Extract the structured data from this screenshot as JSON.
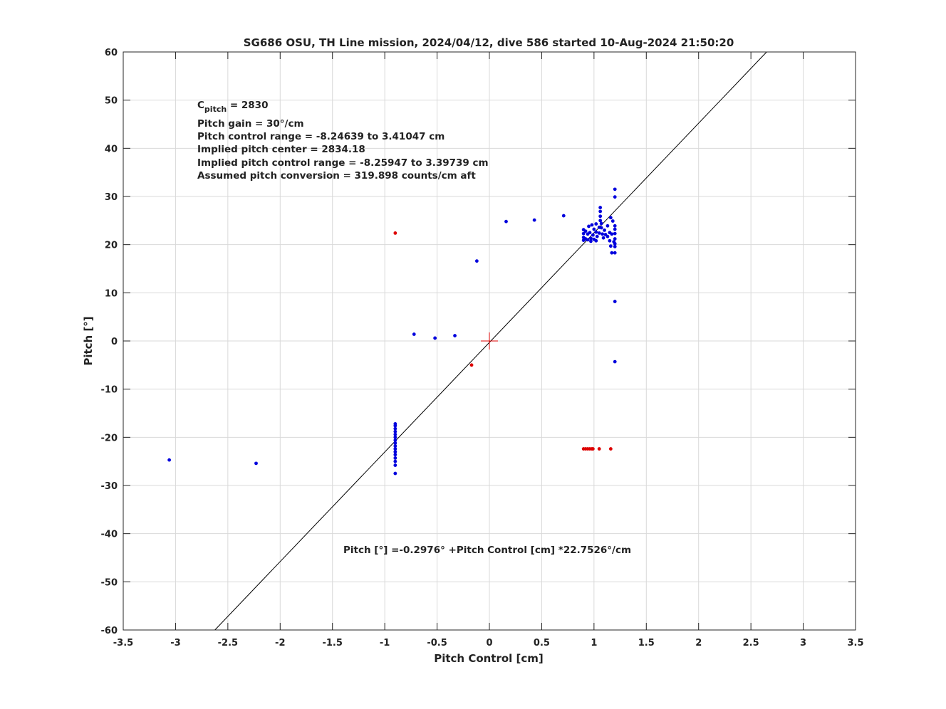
{
  "chart_data": {
    "type": "scatter",
    "title": "SG686 OSU, TH Line mission, 2024/04/12, dive 586 started 10-Aug-2024 21:50:20",
    "xlabel": "Pitch Control [cm]",
    "ylabel": "Pitch [°]",
    "xlim": [
      -3.5,
      3.5
    ],
    "ylim": [
      -60,
      60
    ],
    "x_ticks": [
      -3.5,
      -3,
      -2.5,
      -2,
      -1.5,
      -1,
      -0.5,
      0,
      0.5,
      1,
      1.5,
      2,
      2.5,
      3,
      3.5
    ],
    "x_tick_labels": [
      "-3.5",
      "-3",
      "-2.5",
      "-2",
      "-1.5",
      "-1",
      "-0.5",
      "0",
      "0.5",
      "1",
      "1.5",
      "2",
      "2.5",
      "3",
      "3.5"
    ],
    "y_ticks": [
      -60,
      -50,
      -40,
      -30,
      -20,
      -10,
      0,
      10,
      20,
      30,
      40,
      50,
      60
    ],
    "y_tick_labels": [
      "-60",
      "-50",
      "-40",
      "-30",
      "-20",
      "-10",
      "0",
      "10",
      "20",
      "30",
      "40",
      "50",
      "60"
    ],
    "grid": true,
    "colors": {
      "blue": "#0000dd",
      "red": "#dd0000",
      "fit": "#000000",
      "grid": "#d9d9d9"
    },
    "annotations": {
      "cpitch_symbol": "C",
      "cpitch_subscript": "pitch",
      "cpitch_value": " = 2830",
      "lines": [
        "Pitch gain = 30°/cm",
        "Pitch control range = -8.24639 to 3.41047 cm",
        "Implied pitch center = 2834.18",
        "Implied pitch control range = -8.25947 to 3.39739 cm",
        "Assumed pitch conversion = 319.898 counts/cm aft"
      ],
      "fit_equation": "Pitch [°] =-0.2976° +Pitch Control [cm] *22.7526°/cm"
    },
    "fit_line": {
      "intercept": -0.2976,
      "slope": 22.7526
    },
    "center_marker": {
      "x": 0,
      "y": 0
    },
    "series": [
      {
        "color": "blue",
        "points": [
          [
            -3.06,
            -24.7
          ],
          [
            -2.23,
            -25.4
          ],
          [
            -0.72,
            1.4
          ],
          [
            -0.52,
            0.6
          ],
          [
            -0.33,
            1.1
          ],
          [
            -0.12,
            16.6
          ],
          [
            0.16,
            24.8
          ],
          [
            0.43,
            25.1
          ],
          [
            0.71,
            26.0
          ],
          [
            -0.9,
            -27.5
          ],
          [
            -0.9,
            -25.8
          ],
          [
            -0.9,
            -25.0
          ],
          [
            -0.9,
            -24.3
          ],
          [
            -0.9,
            -23.6
          ],
          [
            -0.9,
            -23.0
          ],
          [
            -0.9,
            -22.4
          ],
          [
            -0.9,
            -21.8
          ],
          [
            -0.9,
            -21.2
          ],
          [
            -0.9,
            -20.6
          ],
          [
            -0.9,
            -20.0
          ],
          [
            -0.9,
            -19.4
          ],
          [
            -0.9,
            -18.8
          ],
          [
            -0.9,
            -18.2
          ],
          [
            -0.9,
            -17.6
          ],
          [
            -0.9,
            -17.2
          ],
          [
            0.9,
            23.1
          ],
          [
            0.9,
            22.3
          ],
          [
            0.9,
            21.5
          ],
          [
            0.9,
            20.9
          ],
          [
            0.92,
            22.8
          ],
          [
            0.92,
            21.2
          ],
          [
            0.94,
            22.2
          ],
          [
            0.94,
            21.0
          ],
          [
            0.95,
            23.8
          ],
          [
            0.96,
            22.5
          ],
          [
            0.97,
            21.3
          ],
          [
            0.97,
            20.7
          ],
          [
            0.98,
            24.1
          ],
          [
            0.99,
            22.0
          ],
          [
            1.0,
            23.2
          ],
          [
            1.0,
            21.1
          ],
          [
            1.02,
            24.3
          ],
          [
            1.02,
            22.6
          ],
          [
            1.02,
            20.8
          ],
          [
            1.03,
            21.7
          ],
          [
            1.05,
            23.6
          ],
          [
            1.05,
            22.4
          ],
          [
            1.06,
            27.7
          ],
          [
            1.06,
            26.9
          ],
          [
            1.06,
            25.9
          ],
          [
            1.06,
            25.0
          ],
          [
            1.07,
            24.4
          ],
          [
            1.07,
            23.5
          ],
          [
            1.08,
            22.2
          ],
          [
            1.09,
            21.4
          ],
          [
            1.1,
            23.0
          ],
          [
            1.11,
            22.1
          ],
          [
            1.13,
            23.9
          ],
          [
            1.13,
            21.7
          ],
          [
            1.15,
            22.5
          ],
          [
            1.15,
            20.8
          ],
          [
            1.16,
            19.7
          ],
          [
            1.16,
            25.6
          ],
          [
            1.17,
            22.2
          ],
          [
            1.17,
            18.3
          ],
          [
            1.18,
            24.9
          ],
          [
            1.19,
            20.6
          ],
          [
            1.2,
            31.5
          ],
          [
            1.2,
            29.9
          ],
          [
            1.2,
            23.9
          ],
          [
            1.2,
            23.2
          ],
          [
            1.2,
            22.3
          ],
          [
            1.2,
            21.2
          ],
          [
            1.2,
            20.2
          ],
          [
            1.2,
            19.6
          ],
          [
            1.2,
            18.3
          ],
          [
            1.2,
            8.2
          ],
          [
            1.2,
            -4.3
          ]
        ]
      },
      {
        "color": "red",
        "points": [
          [
            -0.9,
            22.4
          ],
          [
            -0.17,
            -5.0
          ],
          [
            0.9,
            -22.4
          ],
          [
            0.92,
            -22.4
          ],
          [
            0.94,
            -22.4
          ],
          [
            0.96,
            -22.4
          ],
          [
            0.98,
            -22.4
          ],
          [
            0.99,
            -22.4
          ],
          [
            1.05,
            -22.4
          ],
          [
            1.16,
            -22.4
          ]
        ]
      }
    ]
  }
}
